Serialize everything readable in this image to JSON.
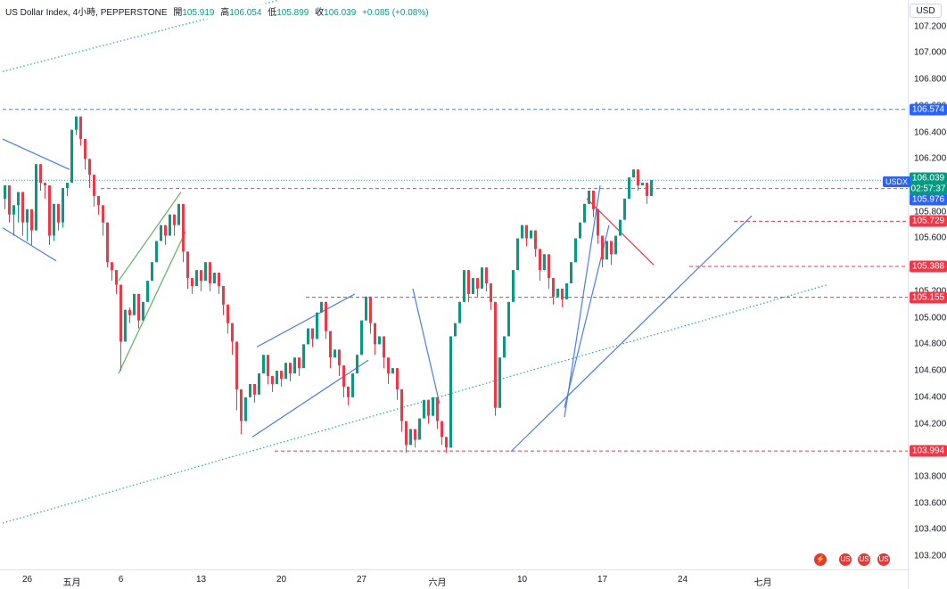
{
  "legend": {
    "symbol": "US Dollar Index, 4小時, PEPPERSTONE",
    "open_label": "開",
    "open": "105.919",
    "high_label": "高",
    "high": "106.054",
    "low_label": "低",
    "low": "105.899",
    "close_label": "收",
    "close": "106.039",
    "change": "+0.085 (+0.08%)"
  },
  "currency": "USD",
  "price_tags": {
    "symbol": "USDX",
    "current": "106.039",
    "countdown": "02:57:37",
    "level_106574": "106.574",
    "level_105976": "105.976",
    "level_105729": "105.729",
    "level_105388": "105.388",
    "level_105155": "105.155",
    "level_103994": "103.994"
  },
  "colors": {
    "up": "#089981",
    "down": "#f23645",
    "blue_line": "#4a7cf0",
    "red_line": "#f23645",
    "green_line": "#5fb35f",
    "dotted_green": "#26a69a"
  },
  "chart_data": {
    "type": "candlestick",
    "title": "US Dollar Index, 4小時, PEPPERSTONE",
    "ylim": [
      103.1,
      107.4
    ],
    "y_ticks": [
      "107.200",
      "107.000",
      "106.800",
      "106.600",
      "106.400",
      "106.200",
      "106.000",
      "105.800",
      "105.600",
      "105.400",
      "105.200",
      "105.000",
      "104.800",
      "104.600",
      "104.400",
      "104.200",
      "104.000",
      "103.800",
      "103.600",
      "103.400",
      "103.200"
    ],
    "x_ticks": [
      {
        "label": "26",
        "index": 5
      },
      {
        "label": "五月",
        "index": 15
      },
      {
        "label": "6",
        "index": 26
      },
      {
        "label": "13",
        "index": 44
      },
      {
        "label": "20",
        "index": 62
      },
      {
        "label": "27",
        "index": 80
      },
      {
        "label": "六月",
        "index": 97
      },
      {
        "label": "10",
        "index": 116
      },
      {
        "label": "17",
        "index": 134
      },
      {
        "label": "24",
        "index": 152
      },
      {
        "label": "七月",
        "index": 170
      }
    ],
    "n_slots": 185,
    "horizontal_levels": [
      {
        "value": 106.574,
        "style": "dashed",
        "color": "blue",
        "from": 0
      },
      {
        "value": 105.976,
        "style": "dashed",
        "color": "blue",
        "from": 22
      },
      {
        "value": 106.039,
        "style": "dotted",
        "color": "green",
        "from": 0
      },
      {
        "value": 105.729,
        "style": "dashed",
        "color": "red",
        "from": 164
      },
      {
        "value": 105.388,
        "style": "dashed",
        "color": "red",
        "from": 154
      },
      {
        "value": 105.155,
        "style": "dashed",
        "color": "red",
        "from": 68
      },
      {
        "value": 103.994,
        "style": "dashed",
        "color": "red",
        "from": 61
      }
    ],
    "trend_lines": [
      {
        "from": [
          0,
          106.86
        ],
        "to": [
          62,
          107.4
        ],
        "style": "dotted",
        "color": "green"
      },
      {
        "from": [
          0,
          103.45
        ],
        "to": [
          185,
          105.25
        ],
        "style": "dotted",
        "color": "green"
      },
      {
        "from": [
          0,
          106.35
        ],
        "to": [
          15,
          106.12
        ],
        "color": "blue"
      },
      {
        "from": [
          0,
          105.68
        ],
        "to": [
          12,
          105.43
        ],
        "color": "blue"
      },
      {
        "from": [
          26,
          105.28
        ],
        "to": [
          40,
          105.95
        ],
        "color": "green"
      },
      {
        "from": [
          26,
          104.58
        ],
        "to": [
          41,
          105.65
        ],
        "color": "green"
      },
      {
        "from": [
          57,
          104.78
        ],
        "to": [
          79,
          105.18
        ],
        "color": "blue"
      },
      {
        "from": [
          56,
          104.1
        ],
        "to": [
          82,
          104.68
        ],
        "color": "blue"
      },
      {
        "from": [
          92,
          105.22
        ],
        "to": [
          98,
          104.35
        ],
        "color": "blue"
      },
      {
        "from": [
          114,
          103.99
        ],
        "to": [
          168,
          105.77
        ],
        "color": "blue"
      },
      {
        "from": [
          126,
          104.25
        ],
        "to": [
          134,
          106.0
        ],
        "color": "blue"
      },
      {
        "from": [
          126,
          104.32
        ],
        "to": [
          136,
          105.7
        ],
        "color": "blue"
      },
      {
        "from": [
          131,
          105.9
        ],
        "to": [
          146,
          105.4
        ],
        "color": "red"
      }
    ],
    "candles": [
      [
        105.9,
        106.0,
        105.85,
        105.82
      ],
      [
        106.0,
        105.78,
        105.92,
        105.72
      ],
      [
        105.78,
        105.85,
        105.7,
        105.62
      ],
      [
        105.85,
        105.95,
        105.75,
        105.72
      ],
      [
        105.95,
        105.72,
        105.82,
        105.62
      ],
      [
        105.72,
        105.82,
        105.62,
        105.58
      ],
      [
        105.82,
        105.66,
        105.75,
        105.55
      ],
      [
        105.66,
        106.16,
        105.98,
        106.22
      ],
      [
        106.16,
        106.02,
        106.09,
        105.96
      ],
      [
        106.02,
        106.0,
        105.94,
        105.9
      ],
      [
        106.0,
        105.62,
        105.76,
        105.55
      ],
      [
        105.62,
        105.86,
        105.68,
        105.58
      ],
      [
        105.86,
        105.72,
        105.8,
        105.66
      ],
      [
        105.72,
        105.98,
        105.84,
        105.68
      ],
      [
        105.98,
        106.02,
        105.96,
        105.92
      ],
      [
        106.02,
        106.42,
        106.22,
        106.45
      ],
      [
        106.42,
        106.52,
        106.46,
        106.38
      ],
      [
        106.52,
        106.35,
        106.44,
        106.3
      ],
      [
        106.35,
        106.2,
        106.3,
        106.12
      ],
      [
        106.2,
        106.08,
        106.16,
        105.98
      ],
      [
        106.08,
        105.92,
        106.02,
        105.84
      ],
      [
        105.92,
        105.85,
        105.88,
        105.78
      ],
      [
        105.85,
        105.72,
        105.8,
        105.62
      ],
      [
        105.72,
        105.42,
        105.56,
        105.38
      ],
      [
        105.42,
        105.36,
        105.4,
        105.28
      ],
      [
        105.36,
        105.25,
        105.3,
        105.18
      ],
      [
        105.25,
        104.82,
        104.96,
        104.6
      ],
      [
        104.82,
        105.06,
        104.94,
        105.12
      ],
      [
        105.06,
        105.02,
        105.08,
        104.96
      ],
      [
        105.02,
        105.18,
        105.1,
        105.25
      ],
      [
        105.18,
        104.98,
        105.08,
        104.92
      ],
      [
        104.98,
        105.12,
        105.06,
        105.2
      ],
      [
        105.12,
        105.28,
        105.2,
        105.35
      ],
      [
        105.28,
        105.42,
        105.35,
        105.5
      ],
      [
        105.42,
        105.58,
        105.5,
        105.65
      ],
      [
        105.58,
        105.7,
        105.64,
        105.78
      ],
      [
        105.7,
        105.62,
        105.68,
        105.55
      ],
      [
        105.62,
        105.78,
        105.7,
        105.85
      ],
      [
        105.78,
        105.7,
        105.76,
        105.62
      ],
      [
        105.7,
        105.86,
        105.78,
        105.95
      ],
      [
        105.86,
        105.5,
        105.66,
        105.42
      ],
      [
        105.5,
        105.3,
        105.42,
        105.22
      ],
      [
        105.3,
        105.24,
        105.28,
        105.18
      ],
      [
        105.24,
        105.36,
        105.3,
        105.42
      ],
      [
        105.36,
        105.28,
        105.34,
        105.2
      ],
      [
        105.28,
        105.42,
        105.36,
        105.48
      ],
      [
        105.42,
        105.26,
        105.34,
        105.2
      ],
      [
        105.26,
        105.34,
        105.3,
        105.4
      ],
      [
        105.34,
        105.24,
        105.3,
        105.18
      ],
      [
        105.24,
        105.1,
        105.18,
        105.02
      ],
      [
        105.1,
        104.96,
        105.04,
        104.88
      ],
      [
        104.96,
        104.82,
        104.9,
        104.72
      ],
      [
        104.82,
        104.46,
        104.62,
        104.3
      ],
      [
        104.46,
        104.22,
        104.34,
        104.12
      ],
      [
        104.22,
        104.4,
        104.3,
        104.48
      ],
      [
        104.4,
        104.5,
        104.46,
        104.56
      ],
      [
        104.5,
        104.42,
        104.48,
        104.36
      ],
      [
        104.42,
        104.58,
        104.5,
        104.66
      ],
      [
        104.58,
        104.72,
        104.64,
        104.8
      ],
      [
        104.72,
        104.56,
        104.64,
        104.5
      ],
      [
        104.56,
        104.5,
        104.54,
        104.44
      ],
      [
        104.5,
        104.6,
        104.56,
        104.68
      ],
      [
        104.6,
        104.54,
        104.58,
        104.48
      ],
      [
        104.54,
        104.66,
        104.6,
        104.72
      ],
      [
        104.66,
        104.58,
        104.62,
        104.52
      ],
      [
        104.58,
        104.7,
        104.64,
        104.76
      ],
      [
        104.7,
        104.62,
        104.66,
        104.56
      ],
      [
        104.62,
        104.8,
        104.7,
        104.88
      ],
      [
        104.8,
        104.92,
        104.86,
        104.98
      ],
      [
        104.92,
        104.84,
        104.88,
        104.78
      ],
      [
        104.84,
        105.04,
        104.94,
        105.12
      ],
      [
        105.04,
        105.12,
        105.08,
        105.18
      ],
      [
        105.12,
        104.9,
        105.0,
        104.84
      ],
      [
        104.9,
        104.7,
        104.8,
        104.62
      ],
      [
        104.7,
        104.76,
        104.72,
        104.82
      ],
      [
        104.76,
        104.64,
        104.7,
        104.56
      ],
      [
        104.64,
        104.48,
        104.56,
        104.4
      ],
      [
        104.48,
        104.4,
        104.44,
        104.34
      ],
      [
        104.4,
        104.58,
        104.5,
        104.66
      ],
      [
        104.58,
        104.72,
        104.66,
        104.8
      ],
      [
        104.72,
        104.98,
        104.84,
        105.06
      ],
      [
        104.98,
        105.16,
        105.06,
        105.22
      ],
      [
        105.16,
        104.96,
        105.04,
        104.88
      ],
      [
        104.96,
        104.8,
        104.88,
        104.72
      ],
      [
        104.8,
        104.86,
        104.82,
        104.92
      ],
      [
        104.86,
        104.7,
        104.78,
        104.62
      ],
      [
        104.7,
        104.58,
        104.64,
        104.5
      ],
      [
        104.58,
        104.62,
        104.6,
        104.68
      ],
      [
        104.62,
        104.46,
        104.54,
        104.38
      ],
      [
        104.46,
        104.22,
        104.32,
        104.14
      ],
      [
        104.22,
        104.04,
        104.12,
        103.98
      ],
      [
        104.04,
        104.16,
        104.1,
        104.22
      ],
      [
        104.16,
        104.08,
        104.12,
        104.02
      ],
      [
        104.08,
        104.24,
        104.16,
        104.3
      ],
      [
        104.24,
        104.38,
        104.3,
        104.44
      ],
      [
        104.38,
        104.26,
        104.32,
        104.2
      ],
      [
        104.26,
        104.4,
        104.34,
        104.48
      ],
      [
        104.4,
        104.22,
        104.3,
        104.16
      ],
      [
        104.22,
        104.1,
        104.16,
        104.04
      ],
      [
        104.1,
        104.02,
        104.06,
        103.98
      ],
      [
        104.02,
        104.86,
        104.5,
        104.9
      ],
      [
        104.86,
        104.96,
        104.9,
        105.02
      ],
      [
        104.96,
        105.12,
        105.04,
        105.18
      ],
      [
        105.12,
        105.36,
        105.24,
        105.42
      ],
      [
        105.36,
        105.18,
        105.28,
        105.12
      ],
      [
        105.18,
        105.3,
        105.24,
        105.36
      ],
      [
        105.3,
        105.22,
        105.26,
        105.16
      ],
      [
        105.22,
        105.38,
        105.3,
        105.44
      ],
      [
        105.38,
        105.26,
        105.32,
        105.2
      ],
      [
        105.26,
        105.12,
        105.2,
        105.06
      ],
      [
        105.12,
        104.32,
        104.7,
        104.26
      ],
      [
        104.32,
        104.7,
        104.5,
        104.78
      ],
      [
        104.7,
        104.86,
        104.78,
        104.92
      ],
      [
        104.86,
        105.12,
        105.0,
        105.2
      ],
      [
        105.12,
        105.36,
        105.24,
        105.44
      ],
      [
        105.36,
        105.6,
        105.48,
        105.68
      ],
      [
        105.6,
        105.7,
        105.66,
        105.78
      ],
      [
        105.7,
        105.6,
        105.64,
        105.54
      ],
      [
        105.6,
        105.66,
        105.62,
        105.72
      ],
      [
        105.66,
        105.52,
        105.58,
        105.46
      ],
      [
        105.52,
        105.36,
        105.44,
        105.28
      ],
      [
        105.36,
        105.48,
        105.42,
        105.56
      ],
      [
        105.48,
        105.3,
        105.38,
        105.22
      ],
      [
        105.3,
        105.16,
        105.22,
        105.1
      ],
      [
        105.16,
        105.22,
        105.18,
        105.28
      ],
      [
        105.22,
        105.14,
        105.18,
        105.08
      ],
      [
        105.14,
        105.26,
        105.2,
        105.32
      ],
      [
        105.26,
        105.42,
        105.34,
        105.5
      ],
      [
        105.42,
        105.6,
        105.5,
        105.68
      ],
      [
        105.6,
        105.72,
        105.66,
        105.8
      ],
      [
        105.72,
        105.86,
        105.78,
        105.94
      ],
      [
        105.86,
        105.96,
        105.92,
        106.0
      ],
      [
        105.96,
        105.82,
        105.9,
        105.76
      ],
      [
        105.82,
        105.62,
        105.72,
        105.56
      ],
      [
        105.62,
        105.44,
        105.54,
        105.38
      ],
      [
        105.44,
        105.58,
        105.5,
        105.66
      ],
      [
        105.58,
        105.48,
        105.52,
        105.4
      ],
      [
        105.48,
        105.62,
        105.56,
        105.7
      ],
      [
        105.62,
        105.74,
        105.68,
        105.82
      ],
      [
        105.74,
        105.9,
        105.82,
        105.98
      ],
      [
        105.9,
        106.06,
        105.98,
        106.14
      ],
      [
        106.06,
        106.12,
        106.1,
        106.16
      ],
      [
        106.12,
        106.0,
        106.06,
        105.96
      ],
      [
        106.0,
        106.02,
        106.0,
        106.06
      ],
      [
        106.02,
        105.92,
        105.96,
        105.86
      ],
      [
        105.92,
        106.04,
        105.98,
        106.06
      ]
    ]
  }
}
